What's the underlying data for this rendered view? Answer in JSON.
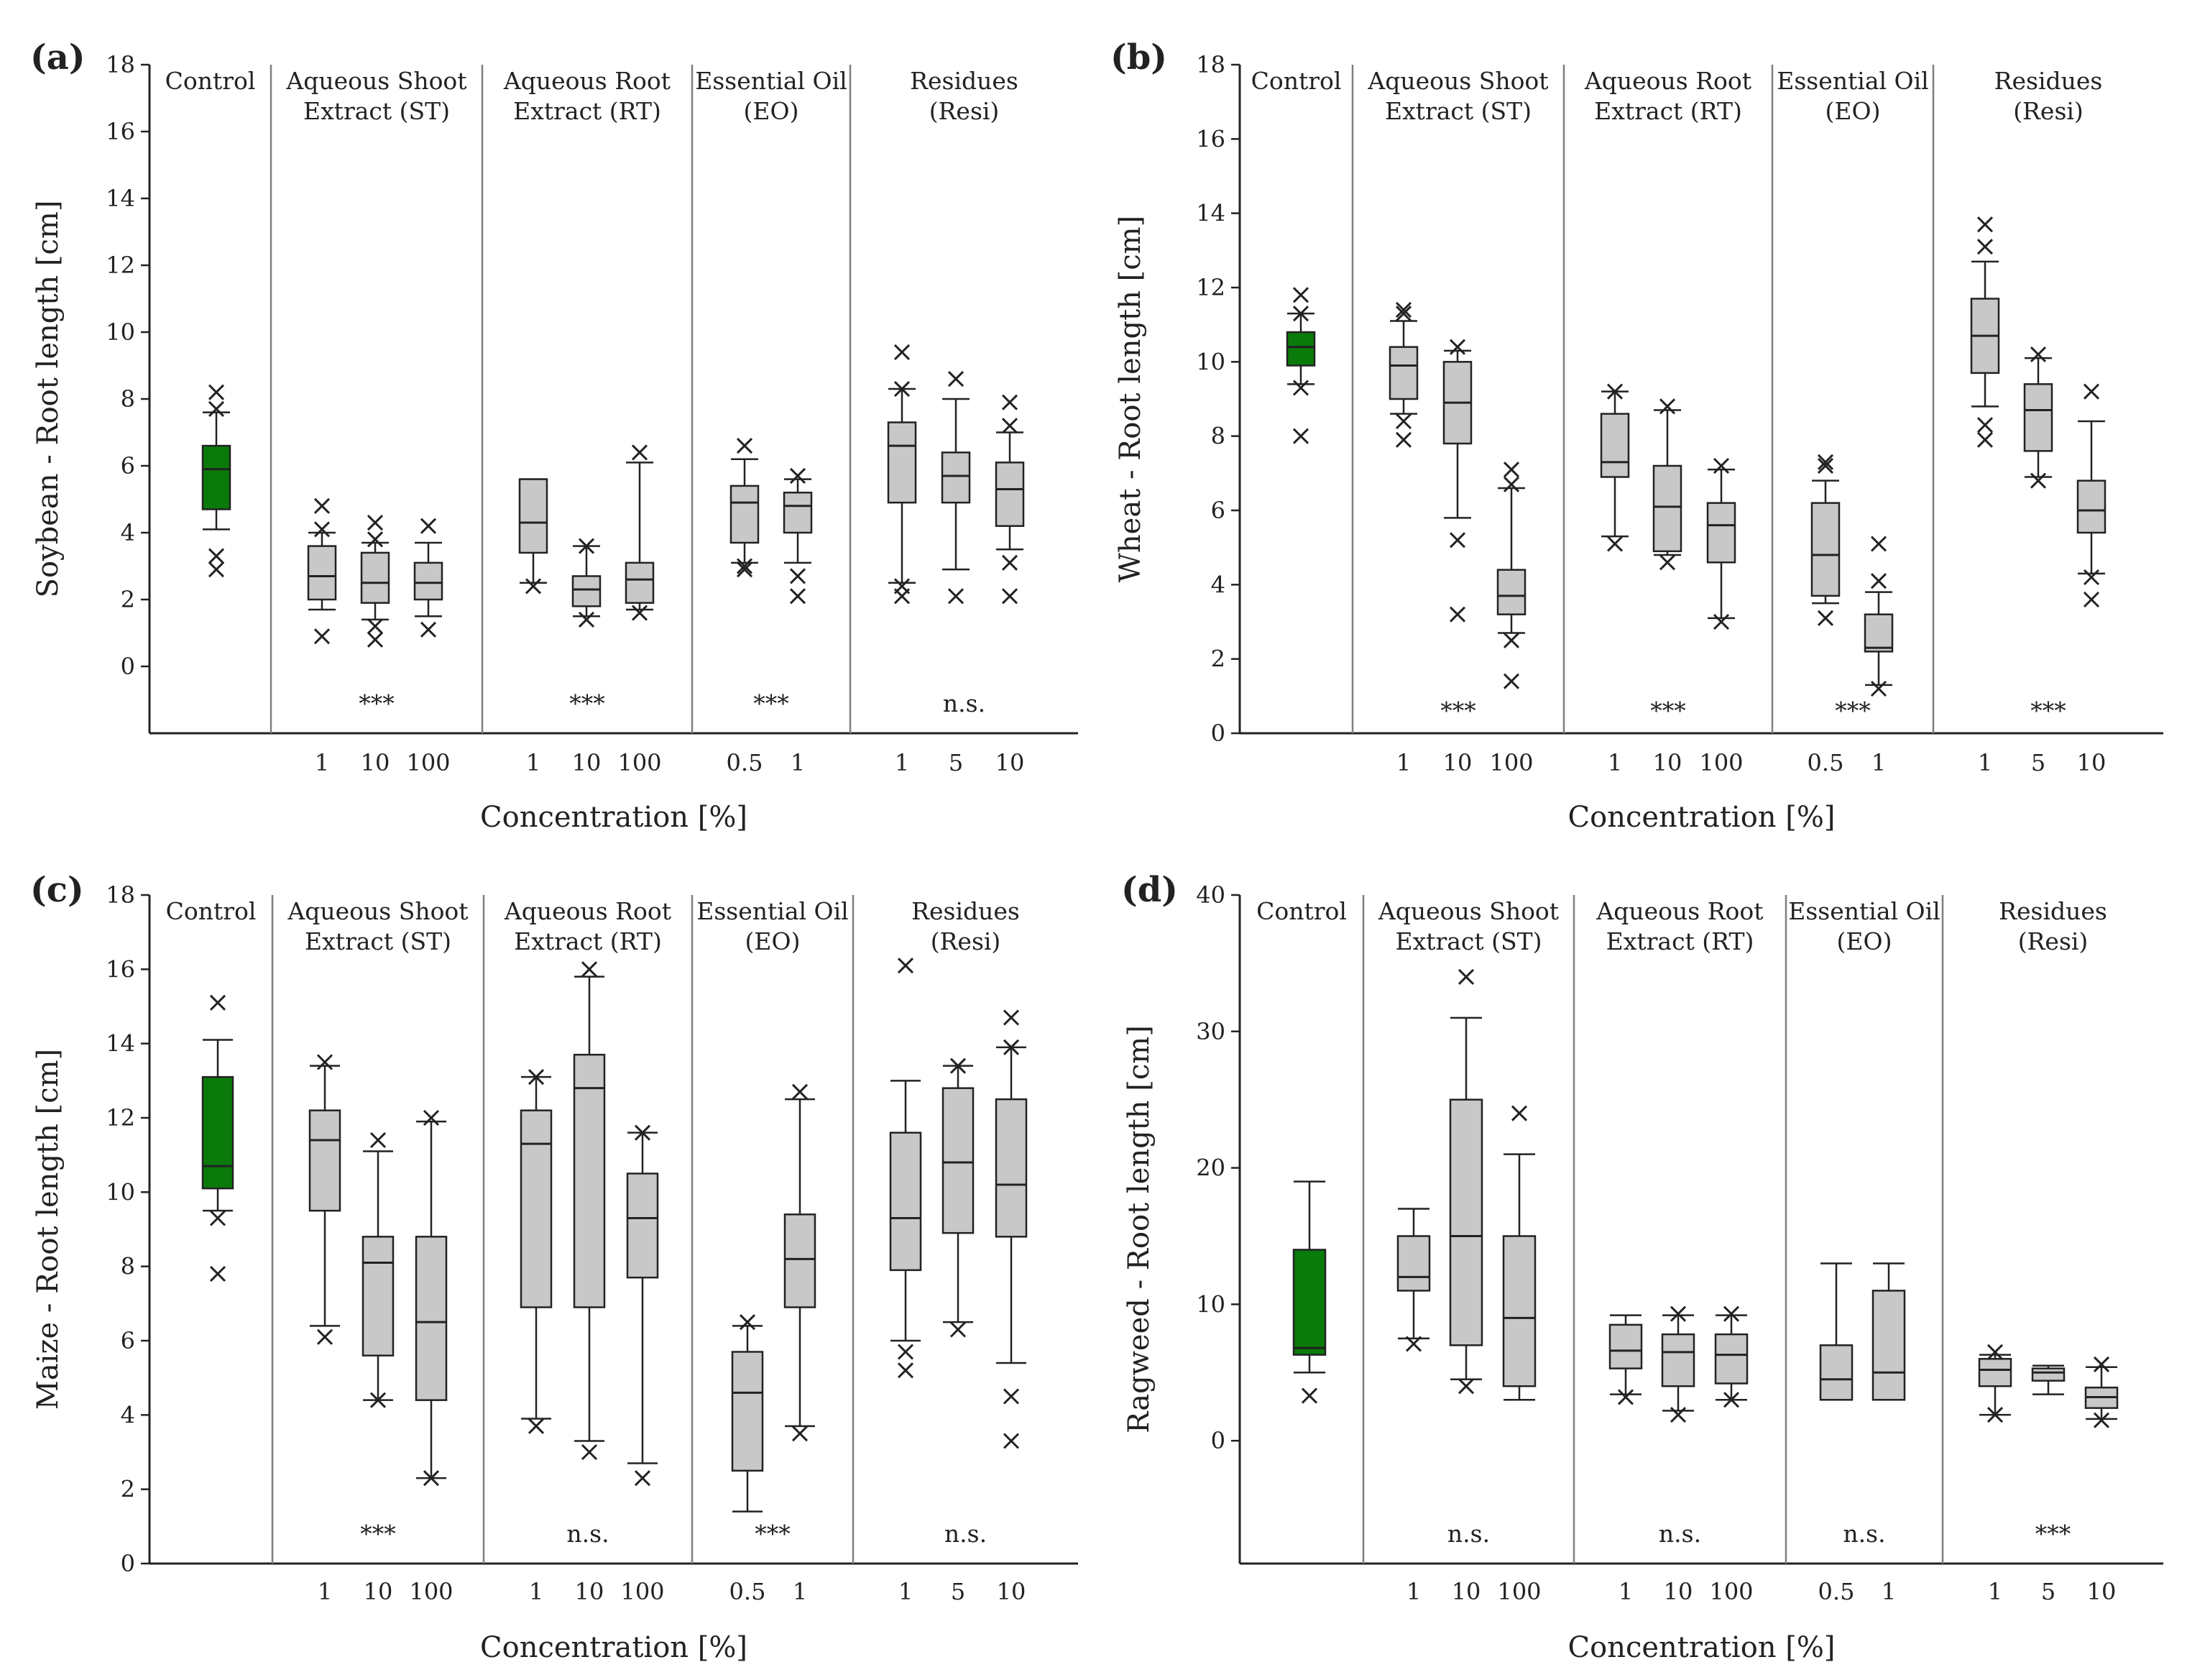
{
  "colors": {
    "control": "#0a7a0a",
    "treatment": "#c8c8c8",
    "stroke": "#222222",
    "divider": "#7f7f7f"
  },
  "chart_data": [
    {
      "type": "box",
      "panel": "(a)",
      "ylabel": "Soybean - Root length [cm]",
      "xlabel": "Concentration [%]",
      "ylim": [
        -2,
        18
      ],
      "yticks": [
        0,
        2,
        4,
        6,
        8,
        10,
        12,
        14,
        16,
        18
      ],
      "groups": [
        {
          "name": "Control",
          "sig": "",
          "boxes": [
            {
              "label": "",
              "control": true,
              "min": 4.1,
              "q1": 4.7,
              "median": 5.9,
              "q3": 6.6,
              "max": 7.6,
              "outliers": [
                8.2,
                7.7,
                3.3,
                2.9
              ]
            }
          ]
        },
        {
          "name": "Aqueous Shoot Extract (ST)",
          "sig": "***",
          "boxes": [
            {
              "label": "1",
              "min": 1.7,
              "q1": 2.0,
              "median": 2.7,
              "q3": 3.6,
              "max": 4.0,
              "outliers": [
                4.8,
                4.1,
                0.9
              ]
            },
            {
              "label": "10",
              "min": 1.4,
              "q1": 1.9,
              "median": 2.5,
              "q3": 3.4,
              "max": 3.7,
              "outliers": [
                4.3,
                3.8,
                1.2,
                0.8
              ]
            },
            {
              "label": "100",
              "min": 1.5,
              "q1": 2.0,
              "median": 2.5,
              "q3": 3.1,
              "max": 3.7,
              "outliers": [
                4.2,
                1.1
              ]
            }
          ]
        },
        {
          "name": "Aqueous Root Extract (RT)",
          "sig": "***",
          "boxes": [
            {
              "label": "1",
              "min": 2.5,
              "q1": 3.4,
              "median": 4.3,
              "q3": 5.6,
              "max": 5.6,
              "outliers": [
                2.4
              ]
            },
            {
              "label": "10",
              "min": 1.5,
              "q1": 1.8,
              "median": 2.3,
              "q3": 2.7,
              "max": 3.6,
              "outliers": [
                3.6,
                1.4
              ]
            },
            {
              "label": "100",
              "min": 1.7,
              "q1": 1.9,
              "median": 2.6,
              "q3": 3.1,
              "max": 6.1,
              "outliers": [
                6.4,
                1.6
              ]
            }
          ]
        },
        {
          "name": "Essential Oil (EO)",
          "sig": "***",
          "boxes": [
            {
              "label": "0.5",
              "min": 3.1,
              "q1": 3.7,
              "median": 4.9,
              "q3": 5.4,
              "max": 6.2,
              "outliers": [
                6.6,
                2.9,
                3.0
              ]
            },
            {
              "label": "1",
              "min": 3.1,
              "q1": 4.0,
              "median": 4.8,
              "q3": 5.2,
              "max": 5.6,
              "outliers": [
                5.7,
                2.7,
                2.1
              ]
            }
          ]
        },
        {
          "name": "Residues (Resi)",
          "sig": "n.s.",
          "boxes": [
            {
              "label": "1",
              "min": 2.5,
              "q1": 4.9,
              "median": 6.6,
              "q3": 7.3,
              "max": 8.3,
              "outliers": [
                9.4,
                8.3,
                2.4,
                2.1
              ]
            },
            {
              "label": "5",
              "min": 2.9,
              "q1": 4.9,
              "median": 5.7,
              "q3": 6.4,
              "max": 8.0,
              "outliers": [
                8.6,
                2.1
              ]
            },
            {
              "label": "10",
              "min": 3.5,
              "q1": 4.2,
              "median": 5.3,
              "q3": 6.1,
              "max": 7.0,
              "outliers": [
                7.9,
                7.2,
                3.1,
                2.1
              ]
            }
          ]
        }
      ]
    },
    {
      "type": "box",
      "panel": "(b)",
      "ylabel": "Wheat - Root length [cm]",
      "xlabel": "Concentration [%]",
      "ylim": [
        0,
        18
      ],
      "yticks": [
        0,
        2,
        4,
        6,
        8,
        10,
        12,
        14,
        16,
        18
      ],
      "groups": [
        {
          "name": "Control",
          "sig": "",
          "boxes": [
            {
              "label": "",
              "control": true,
              "min": 9.4,
              "q1": 9.9,
              "median": 10.4,
              "q3": 10.8,
              "max": 11.3,
              "outliers": [
                11.8,
                11.3,
                9.3,
                8.0
              ]
            }
          ]
        },
        {
          "name": "Aqueous Shoot Extract (ST)",
          "sig": "***",
          "boxes": [
            {
              "label": "1",
              "min": 8.6,
              "q1": 9.0,
              "median": 9.9,
              "q3": 10.4,
              "max": 11.1,
              "outliers": [
                11.4,
                11.3,
                8.4,
                7.9
              ]
            },
            {
              "label": "10",
              "min": 5.8,
              "q1": 7.8,
              "median": 8.9,
              "q3": 10.0,
              "max": 10.3,
              "outliers": [
                10.4,
                5.2,
                3.2
              ]
            },
            {
              "label": "100",
              "min": 2.7,
              "q1": 3.2,
              "median": 3.7,
              "q3": 4.4,
              "max": 6.6,
              "outliers": [
                7.1,
                6.7,
                2.5,
                1.4
              ]
            }
          ]
        },
        {
          "name": "Aqueous Root Extract (RT)",
          "sig": "***",
          "boxes": [
            {
              "label": "1",
              "min": 5.3,
              "q1": 6.9,
              "median": 7.3,
              "q3": 8.6,
              "max": 9.2,
              "outliers": [
                9.2,
                5.1
              ]
            },
            {
              "label": "10",
              "min": 4.8,
              "q1": 4.9,
              "median": 6.1,
              "q3": 7.2,
              "max": 8.7,
              "outliers": [
                8.8,
                4.6
              ]
            },
            {
              "label": "100",
              "min": 3.1,
              "q1": 4.6,
              "median": 5.6,
              "q3": 6.2,
              "max": 7.1,
              "outliers": [
                7.2,
                3.0
              ]
            }
          ]
        },
        {
          "name": "Essential Oil (EO)",
          "sig": "***",
          "boxes": [
            {
              "label": "0.5",
              "min": 3.5,
              "q1": 3.7,
              "median": 4.8,
              "q3": 6.2,
              "max": 6.8,
              "outliers": [
                7.3,
                7.2,
                3.1
              ]
            },
            {
              "label": "1",
              "min": 1.3,
              "q1": 2.2,
              "median": 2.3,
              "q3": 3.2,
              "max": 3.8,
              "outliers": [
                5.1,
                4.1,
                1.2
              ]
            }
          ]
        },
        {
          "name": "Residues (Resi)",
          "sig": "***",
          "boxes": [
            {
              "label": "1",
              "min": 8.8,
              "q1": 9.7,
              "median": 10.7,
              "q3": 11.7,
              "max": 12.7,
              "outliers": [
                13.7,
                13.1,
                8.3,
                7.9
              ]
            },
            {
              "label": "5",
              "min": 6.9,
              "q1": 7.6,
              "median": 8.7,
              "q3": 9.4,
              "max": 10.1,
              "outliers": [
                10.2,
                6.8
              ]
            },
            {
              "label": "10",
              "min": 4.3,
              "q1": 5.4,
              "median": 6.0,
              "q3": 6.8,
              "max": 8.4,
              "outliers": [
                9.2,
                4.2,
                3.6
              ]
            }
          ]
        }
      ]
    },
    {
      "type": "box",
      "panel": "(c)",
      "ylabel": "Maize - Root length [cm]",
      "xlabel": "Concentration [%]",
      "ylim": [
        0,
        18
      ],
      "yticks": [
        0,
        2,
        4,
        6,
        8,
        10,
        12,
        14,
        16,
        18
      ],
      "groups": [
        {
          "name": "Control",
          "sig": "",
          "boxes": [
            {
              "label": "",
              "control": true,
              "min": 9.5,
              "q1": 10.1,
              "median": 10.7,
              "q3": 13.1,
              "max": 14.1,
              "outliers": [
                15.1,
                9.3,
                7.8
              ]
            }
          ]
        },
        {
          "name": "Aqueous Shoot Extract (ST)",
          "sig": "***",
          "boxes": [
            {
              "label": "1",
              "min": 6.4,
              "q1": 9.5,
              "median": 11.4,
              "q3": 12.2,
              "max": 13.4,
              "outliers": [
                13.5,
                6.1
              ]
            },
            {
              "label": "10",
              "min": 4.4,
              "q1": 5.6,
              "median": 8.1,
              "q3": 8.8,
              "max": 11.1,
              "outliers": [
                11.4,
                4.4
              ]
            },
            {
              "label": "100",
              "min": 2.3,
              "q1": 4.4,
              "median": 6.5,
              "q3": 8.8,
              "max": 11.9,
              "outliers": [
                12.0,
                2.3
              ]
            }
          ]
        },
        {
          "name": "Aqueous Root Extract (RT)",
          "sig": "n.s.",
          "boxes": [
            {
              "label": "1",
              "min": 3.9,
              "q1": 6.9,
              "median": 11.3,
              "q3": 12.2,
              "max": 13.1,
              "outliers": [
                13.1,
                3.7
              ]
            },
            {
              "label": "10",
              "min": 3.3,
              "q1": 6.9,
              "median": 12.8,
              "q3": 13.7,
              "max": 15.8,
              "outliers": [
                16.0,
                3.0
              ]
            },
            {
              "label": "100",
              "min": 2.7,
              "q1": 7.7,
              "median": 9.3,
              "q3": 10.5,
              "max": 11.6,
              "outliers": [
                11.6,
                2.3
              ]
            }
          ]
        },
        {
          "name": "Essential Oil (EO)",
          "sig": "***",
          "boxes": [
            {
              "label": "0.5",
              "min": 1.4,
              "q1": 2.5,
              "median": 4.6,
              "q3": 5.7,
              "max": 6.4,
              "outliers": [
                6.5
              ]
            },
            {
              "label": "1",
              "min": 3.7,
              "q1": 6.9,
              "median": 8.2,
              "q3": 9.4,
              "max": 12.5,
              "outliers": [
                12.7,
                3.5
              ]
            }
          ]
        },
        {
          "name": "Residues (Resi)",
          "sig": "n.s.",
          "boxes": [
            {
              "label": "1",
              "min": 6.0,
              "q1": 7.9,
              "median": 9.3,
              "q3": 11.6,
              "max": 13.0,
              "outliers": [
                16.1,
                5.7,
                5.2
              ]
            },
            {
              "label": "5",
              "min": 6.5,
              "q1": 8.9,
              "median": 10.8,
              "q3": 12.8,
              "max": 13.4,
              "outliers": [
                13.4,
                6.3
              ]
            },
            {
              "label": "10",
              "min": 5.4,
              "q1": 8.8,
              "median": 10.2,
              "q3": 12.5,
              "max": 13.9,
              "outliers": [
                14.7,
                13.9,
                4.5,
                3.3
              ]
            }
          ]
        }
      ]
    },
    {
      "type": "box",
      "panel": "(d)",
      "ylabel": "Ragweed - Root length [cm]",
      "xlabel": "Concentration [%]",
      "ylim": [
        -9,
        40
      ],
      "yticks": [
        0,
        10,
        20,
        30,
        40
      ],
      "groups": [
        {
          "name": "Control",
          "sig": "",
          "boxes": [
            {
              "label": "",
              "control": true,
              "min": 5.0,
              "q1": 6.3,
              "median": 6.8,
              "q3": 14.0,
              "max": 19.0,
              "outliers": [
                3.3
              ]
            }
          ]
        },
        {
          "name": "Aqueous Shoot Extract (ST)",
          "sig": "n.s.",
          "boxes": [
            {
              "label": "1",
              "min": 7.5,
              "q1": 11.0,
              "median": 12.0,
              "q3": 15.0,
              "max": 17.0,
              "outliers": [
                7.1
              ]
            },
            {
              "label": "10",
              "min": 4.5,
              "q1": 7.0,
              "median": 15.0,
              "q3": 25.0,
              "max": 31.0,
              "outliers": [
                34.0,
                4.0
              ]
            },
            {
              "label": "100",
              "min": 3.0,
              "q1": 4.0,
              "median": 9.0,
              "q3": 15.0,
              "max": 21.0,
              "outliers": [
                24.0
              ]
            }
          ]
        },
        {
          "name": "Aqueous Root Extract (RT)",
          "sig": "n.s.",
          "boxes": [
            {
              "label": "1",
              "min": 3.4,
              "q1": 5.3,
              "median": 6.6,
              "q3": 8.5,
              "max": 9.2,
              "outliers": [
                3.2
              ]
            },
            {
              "label": "10",
              "min": 2.2,
              "q1": 4.0,
              "median": 6.5,
              "q3": 7.8,
              "max": 9.2,
              "outliers": [
                9.3,
                1.9
              ]
            },
            {
              "label": "100",
              "min": 3.0,
              "q1": 4.2,
              "median": 6.3,
              "q3": 7.8,
              "max": 9.2,
              "outliers": [
                9.3,
                3.0
              ]
            }
          ]
        },
        {
          "name": "Essential Oil (EO)",
          "sig": "n.s.",
          "boxes": [
            {
              "label": "0.5",
              "min": 3.0,
              "q1": 3.0,
              "median": 4.5,
              "q3": 7.0,
              "max": 13.0,
              "outliers": []
            },
            {
              "label": "1",
              "min": 3.0,
              "q1": 3.0,
              "median": 5.0,
              "q3": 11.0,
              "max": 13.0,
              "outliers": []
            }
          ]
        },
        {
          "name": "Residues (Resi)",
          "sig": "***",
          "boxes": [
            {
              "label": "1",
              "min": 1.9,
              "q1": 4.0,
              "median": 5.2,
              "q3": 6.0,
              "max": 6.3,
              "outliers": [
                6.5,
                1.9
              ]
            },
            {
              "label": "5",
              "min": 3.4,
              "q1": 4.4,
              "median": 5.0,
              "q3": 5.3,
              "max": 5.5,
              "outliers": []
            },
            {
              "label": "10",
              "min": 1.6,
              "q1": 2.4,
              "median": 3.2,
              "q3": 3.9,
              "max": 5.4,
              "outliers": [
                5.6,
                1.5
              ]
            }
          ]
        }
      ]
    }
  ],
  "header_lines": {
    "Control": [
      "Control"
    ],
    "Aqueous Shoot Extract (ST)": [
      "Aqueous Shoot",
      "Extract (ST)"
    ],
    "Aqueous Root Extract (RT)": [
      "Aqueous Root",
      "Extract (RT)"
    ],
    "Essential Oil (EO)": [
      "Essential Oil",
      "(EO)"
    ],
    "Residues (Resi)": [
      "Residues",
      "(Resi)"
    ]
  }
}
